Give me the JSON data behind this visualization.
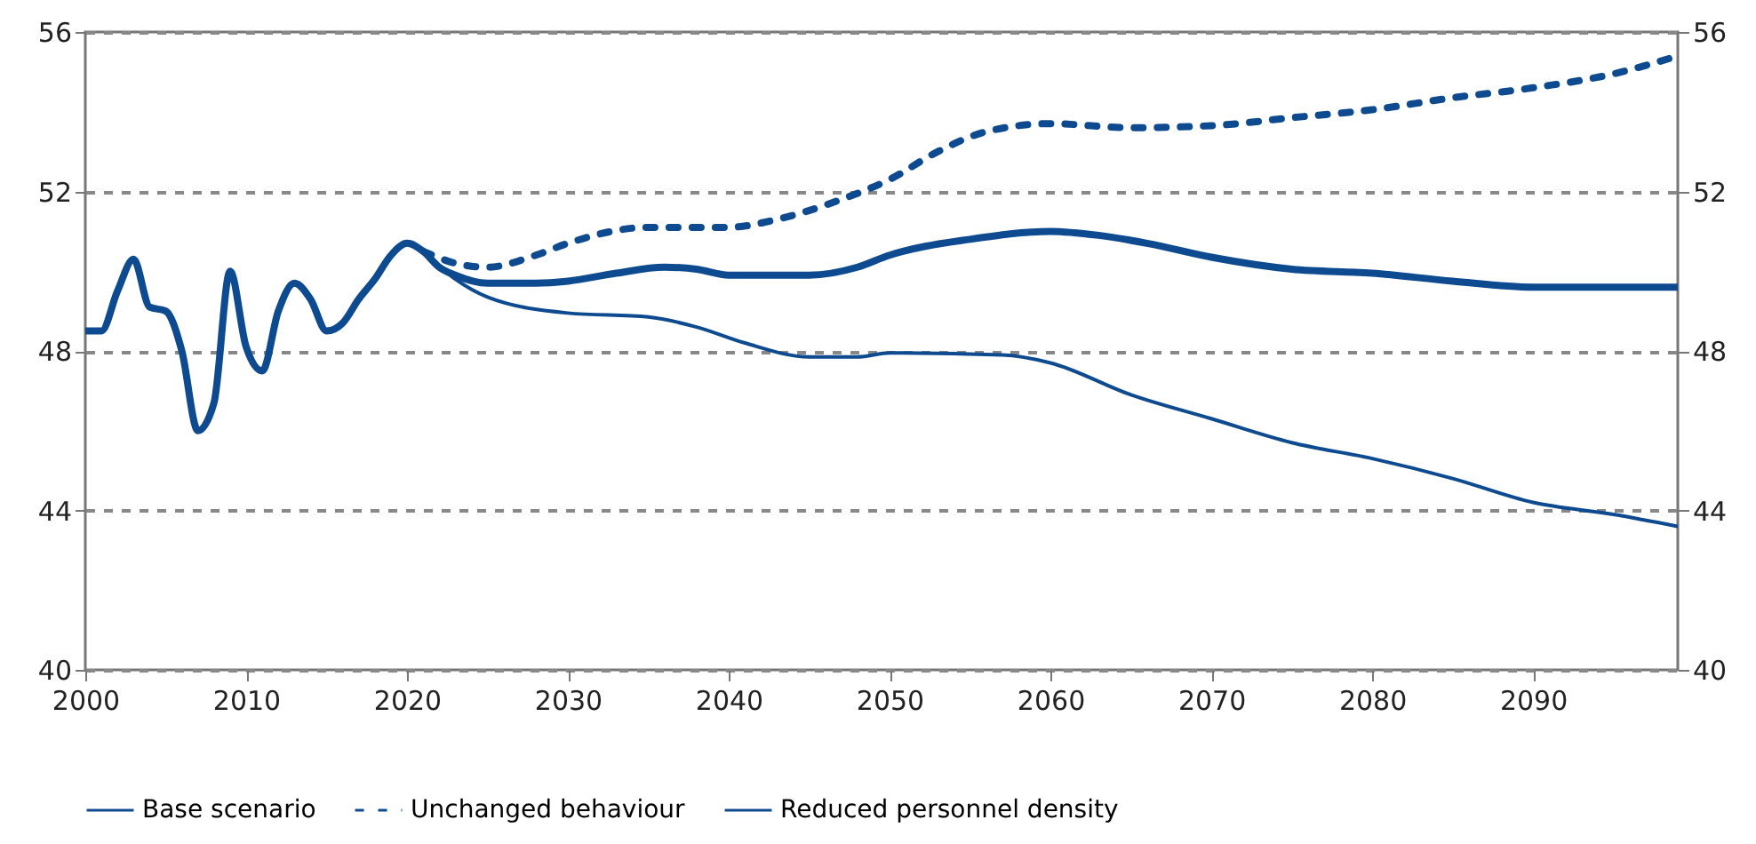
{
  "chart_data": {
    "type": "line",
    "xlim": [
      2000,
      2099
    ],
    "xticks": [
      2000,
      2010,
      2020,
      2030,
      2040,
      2050,
      2060,
      2070,
      2080,
      2090
    ],
    "ylim": [
      40,
      56
    ],
    "yticks": [
      40,
      44,
      48,
      52,
      56
    ],
    "y2lim": [
      40,
      56
    ],
    "y2ticks": [
      40,
      44,
      48,
      52,
      56
    ],
    "grid": "y",
    "legend": "bottom",
    "marker": "none",
    "series": [
      {
        "name": "Base scenario",
        "color": "#0d4a8f",
        "line_style": "solid",
        "x": [
          2000,
          2001,
          2002,
          2003,
          2004,
          2005,
          2006,
          2007,
          2008,
          2009,
          2010,
          2011,
          2012,
          2013,
          2014,
          2015,
          2016,
          2017,
          2018,
          2019,
          2020,
          2021,
          2022,
          2023,
          2025,
          2028,
          2030,
          2033,
          2036,
          2038,
          2040,
          2045,
          2048,
          2050,
          2055,
          2060,
          2063,
          2066,
          2070,
          2075,
          2080,
          2085,
          2090,
          2095,
          2099
        ],
        "values": [
          48.5,
          48.5,
          49.5,
          50.3,
          49.1,
          49.0,
          48.0,
          46.0,
          46.7,
          50.0,
          48.1,
          47.5,
          49.0,
          49.7,
          49.3,
          48.5,
          48.7,
          49.3,
          49.8,
          50.4,
          50.7,
          50.5,
          50.1,
          49.9,
          49.7,
          49.7,
          49.75,
          49.95,
          50.1,
          50.05,
          49.9,
          49.9,
          50.1,
          50.4,
          50.8,
          51.0,
          50.9,
          50.7,
          50.35,
          50.05,
          49.95,
          49.75,
          49.6,
          49.6,
          49.6
        ]
      },
      {
        "name": "Unchanged behaviour",
        "color": "#0d4a8f",
        "line_style": "dashed",
        "x": [
          2021,
          2023,
          2025,
          2028,
          2030,
          2035,
          2040,
          2043,
          2047,
          2050,
          2053,
          2056,
          2060,
          2065,
          2070,
          2075,
          2080,
          2085,
          2090,
          2095,
          2099
        ],
        "values": [
          50.5,
          50.2,
          50.1,
          50.4,
          50.7,
          51.1,
          51.1,
          51.3,
          51.8,
          52.3,
          53.0,
          53.5,
          53.7,
          53.6,
          53.65,
          53.85,
          54.05,
          54.35,
          54.6,
          54.95,
          55.4
        ]
      },
      {
        "name": "Reduced personnel density",
        "color": "#0d4a8f",
        "line_style": "solid",
        "x": [
          2021,
          2023,
          2025,
          2030,
          2035,
          2038,
          2041,
          2045,
          2048,
          2050,
          2057,
          2060,
          2065,
          2070,
          2075,
          2080,
          2085,
          2090,
          2095,
          2099
        ],
        "values": [
          50.5,
          49.8,
          49.35,
          48.95,
          48.85,
          48.6,
          48.2,
          47.85,
          47.85,
          47.95,
          47.9,
          47.7,
          46.9,
          46.3,
          45.7,
          45.3,
          44.8,
          44.2,
          43.9,
          43.6
        ]
      }
    ]
  }
}
